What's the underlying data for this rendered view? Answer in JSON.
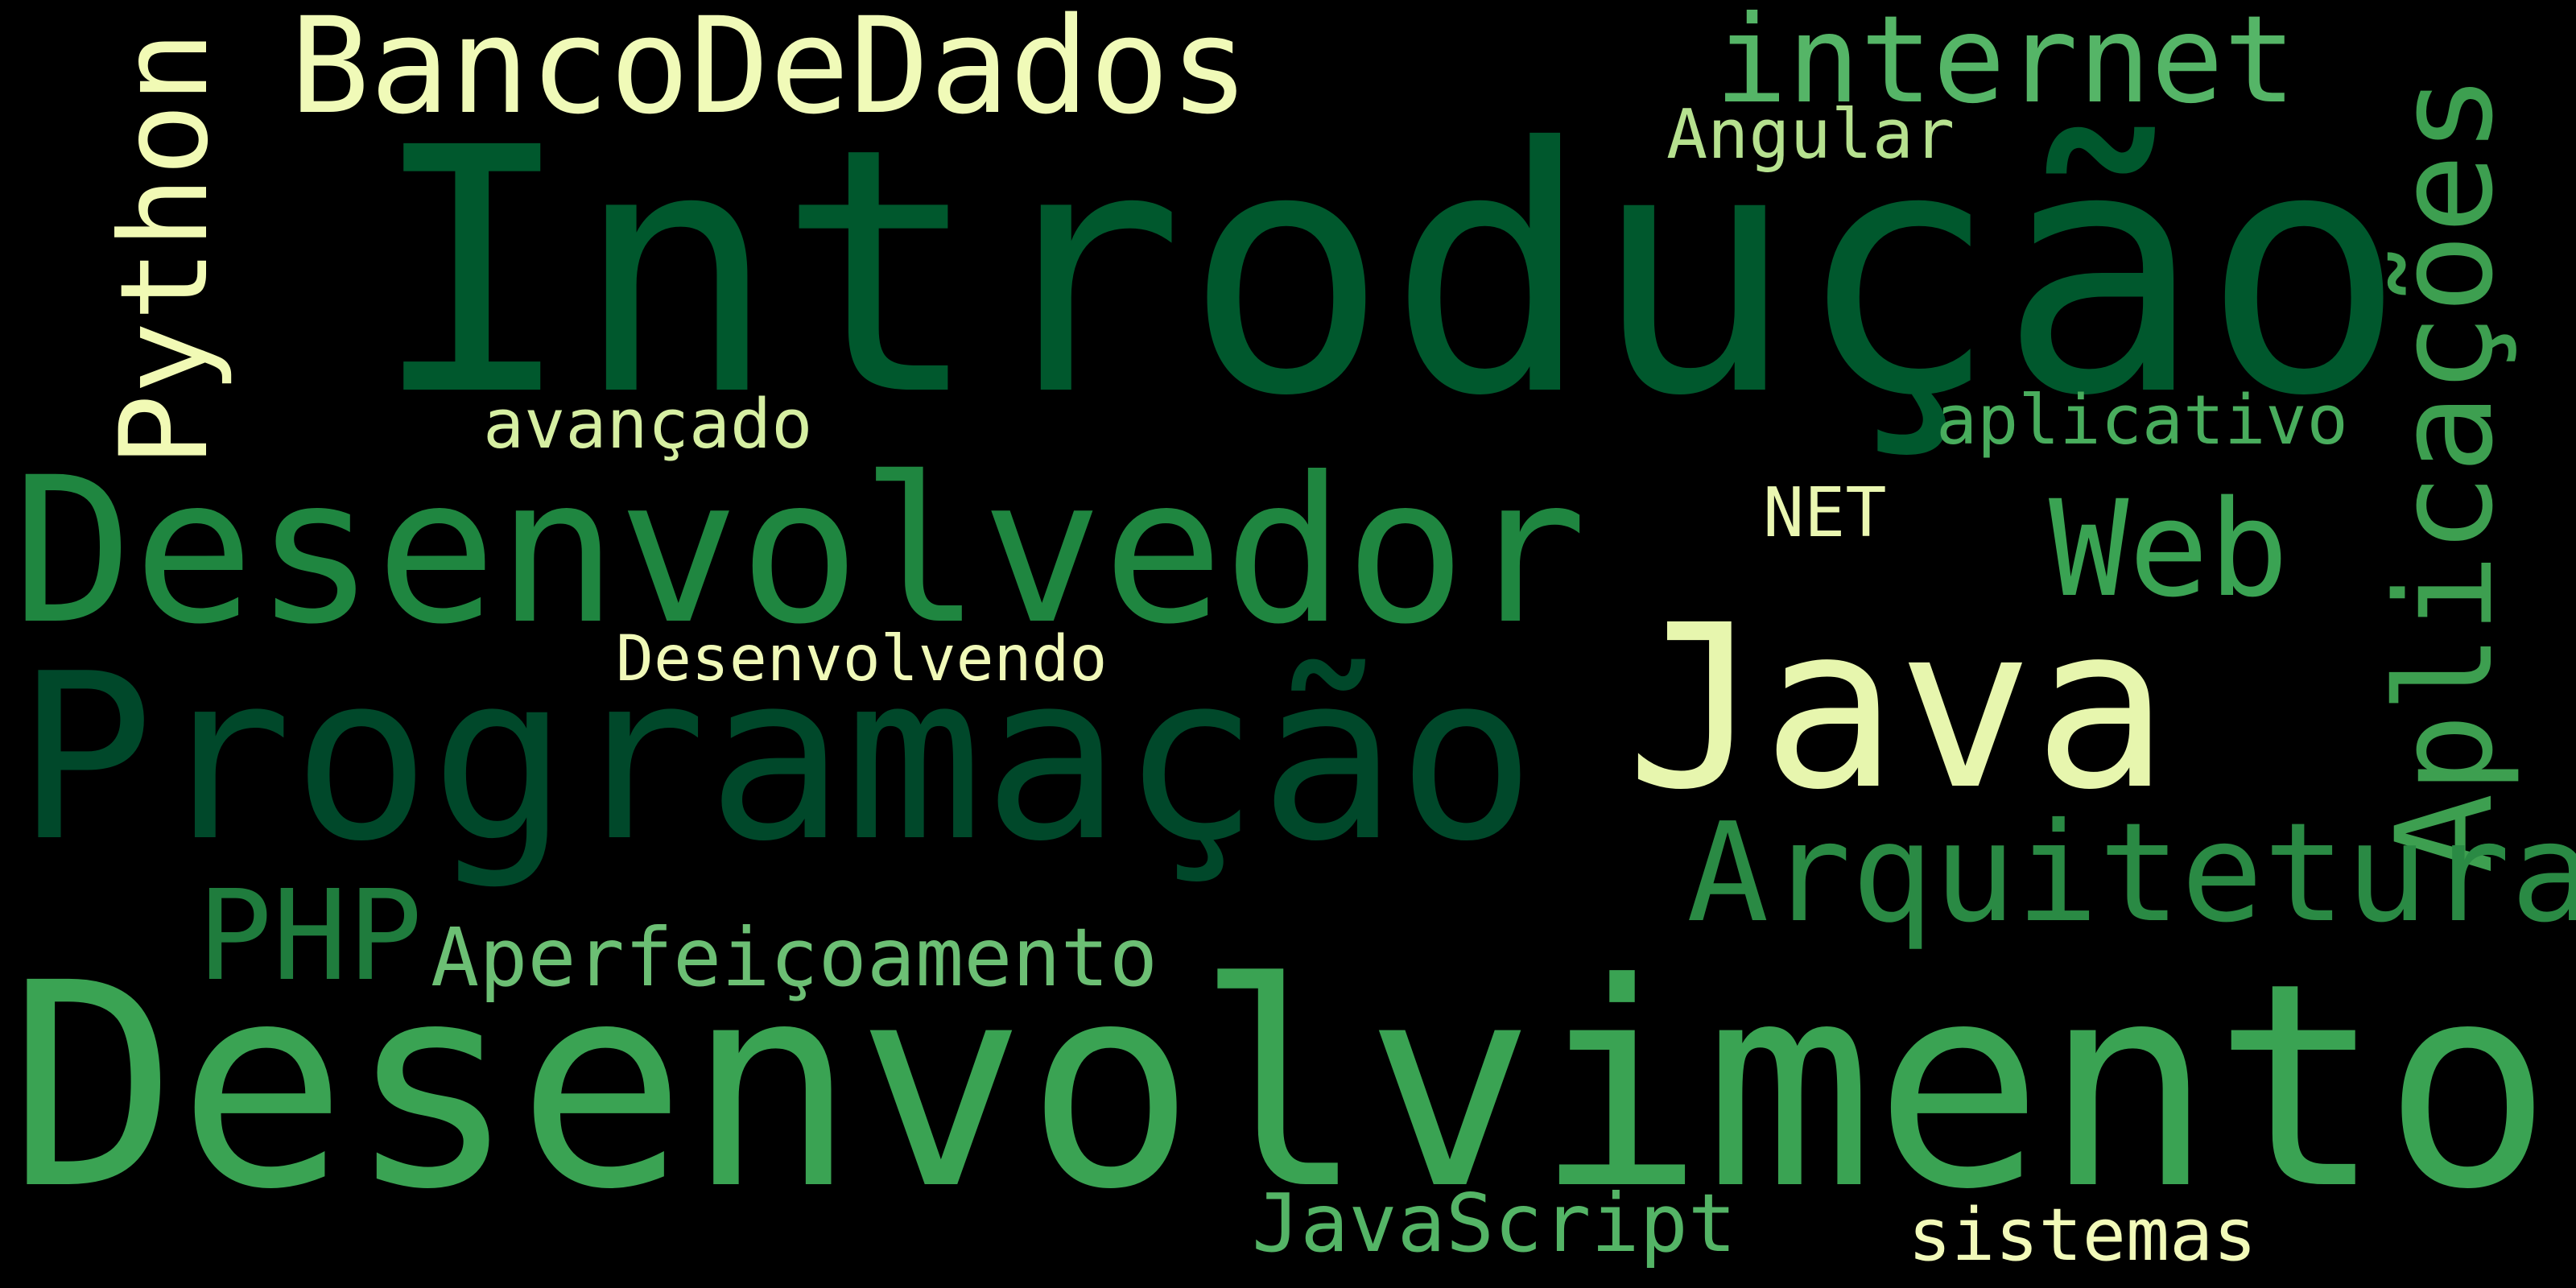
{
  "words": [
    {
      "id": "introducao",
      "text": "Introdução",
      "color": "#00582d"
    },
    {
      "id": "desenvolvimento",
      "text": "Desenvolvimento",
      "color": "#3aa353"
    },
    {
      "id": "programacao",
      "text": "Programação",
      "color": "#00482a"
    },
    {
      "id": "desenvolvedor",
      "text": "Desenvolvedor",
      "color": "#1f8640"
    },
    {
      "id": "java",
      "text": "Java",
      "color": "#e7f6ae"
    },
    {
      "id": "bancodedados",
      "text": "BancoDeDados",
      "color": "#f0fab8"
    },
    {
      "id": "aplicacoes",
      "text": "Aplicações",
      "color": "#3d9f50"
    },
    {
      "id": "arquitetura",
      "text": "Arquitetura",
      "color": "#2a8a44"
    },
    {
      "id": "python",
      "text": "Python",
      "color": "#f1fab5"
    },
    {
      "id": "internet",
      "text": "internet",
      "color": "#55b567"
    },
    {
      "id": "web",
      "text": "Web",
      "color": "#3aa353"
    },
    {
      "id": "php",
      "text": "PHP",
      "color": "#1f7c3d"
    },
    {
      "id": "aperfeicoamento",
      "text": "Aperfeiçoamento",
      "color": "#6cbf74"
    },
    {
      "id": "javascript",
      "text": "JavaScript",
      "color": "#54b466"
    },
    {
      "id": "sistemas",
      "text": "sistemas",
      "color": "#f2fab9"
    },
    {
      "id": "aplicativo",
      "text": "aplicativo",
      "color": "#49ad5d"
    },
    {
      "id": "avancado",
      "text": "avançado",
      "color": "#d6efa2"
    },
    {
      "id": "desenvolvendo",
      "text": "Desenvolvendo",
      "color": "#f0f9b8"
    },
    {
      "id": "net",
      "text": "NET",
      "color": "#eaf7b1"
    },
    {
      "id": "angular",
      "text": "Angular",
      "color": "#b6e18f"
    }
  ]
}
